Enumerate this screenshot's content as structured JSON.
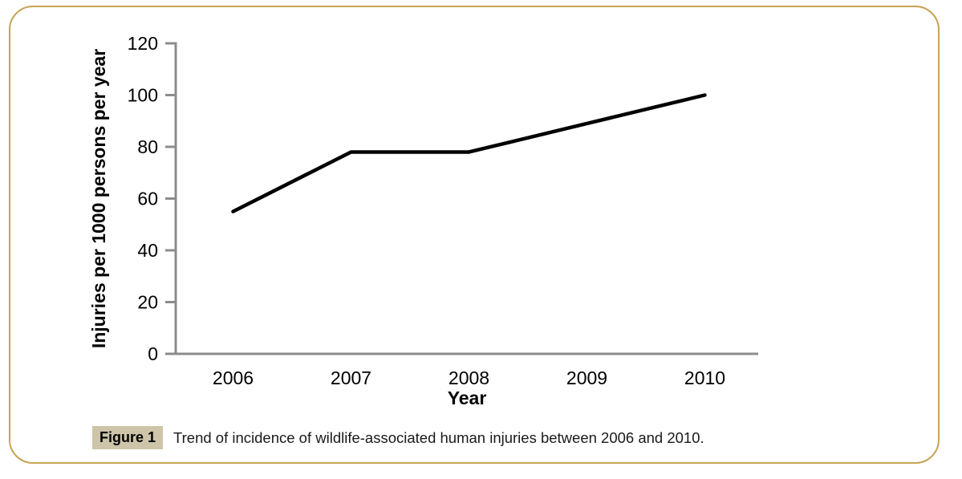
{
  "frame": {
    "border_color": "#C6A455",
    "background": "#ffffff"
  },
  "chart_data": {
    "type": "line",
    "title": "",
    "categories": [
      "2006",
      "2007",
      "2008",
      "2009",
      "2010"
    ],
    "series": [
      {
        "name": "Injuries per 1000 persons per year",
        "values": [
          55,
          78,
          78,
          89,
          100
        ]
      }
    ],
    "xlabel": "Year",
    "ylabel": "Injuries per 1000 persons per year",
    "ylim": [
      0,
      120
    ],
    "yticks": [
      0,
      20,
      40,
      60,
      80,
      100,
      120
    ],
    "grid": false,
    "legend": "none",
    "line_color": "#000000",
    "axis_color": "#8C8C8C",
    "text_color": "#000000"
  },
  "caption": {
    "label": "Figure 1",
    "label_bg": "#CDC4A9",
    "text": "Trend of incidence of wildlife-associated human injuries between 2006 and 2010."
  }
}
